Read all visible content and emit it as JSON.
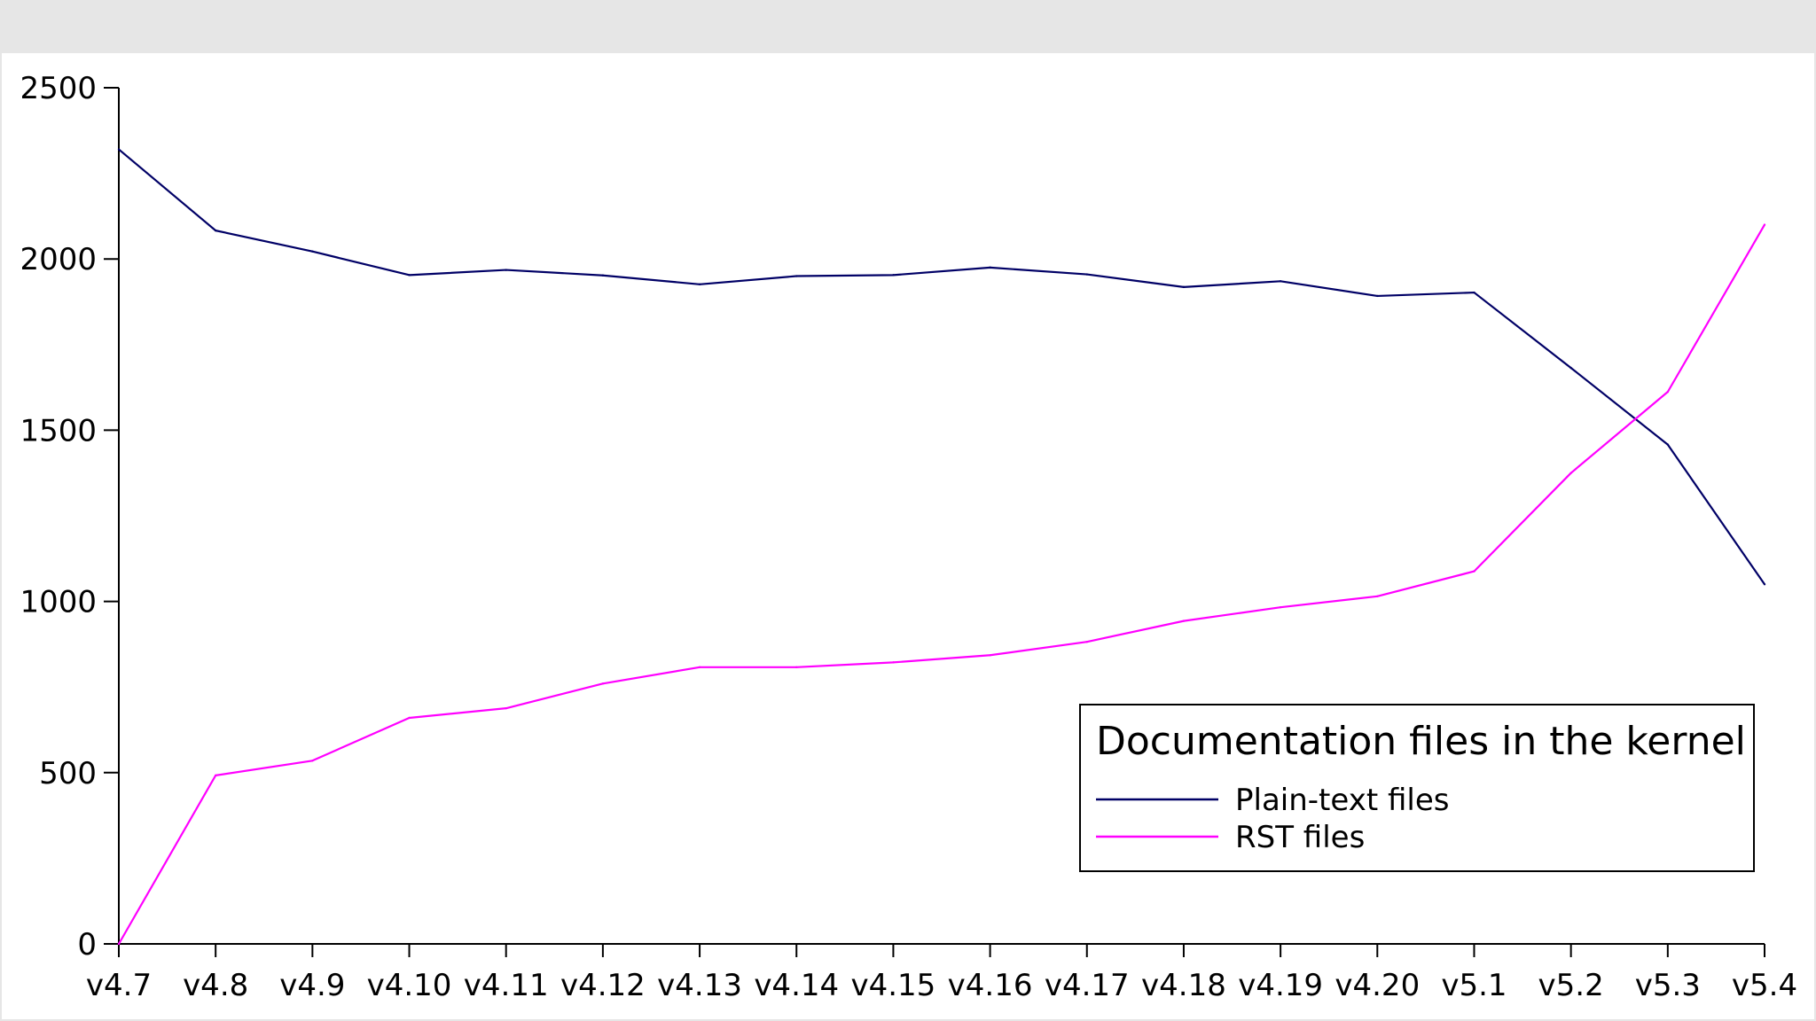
{
  "colors": {
    "background": "#ffffff",
    "frame": "#e6e6e6",
    "axis": "#000000"
  },
  "chart_data": {
    "type": "line",
    "title": "",
    "xlabel": "",
    "ylabel": "",
    "categories": [
      "v4.7",
      "v4.8",
      "v4.9",
      "v4.10",
      "v4.11",
      "v4.12",
      "v4.13",
      "v4.14",
      "v4.15",
      "v4.16",
      "v4.17",
      "v4.18",
      "v4.19",
      "v4.20",
      "v5.1",
      "v5.2",
      "v5.3",
      "v5.4"
    ],
    "ylim": [
      0,
      2500
    ],
    "yticks": [
      0,
      500,
      1000,
      1500,
      2000,
      2500
    ],
    "grid": false,
    "legend": {
      "title": "Documentation files in the kernel",
      "placement": "bottom-right"
    },
    "series": [
      {
        "name": "Plain-text files",
        "color": "#000066",
        "values": [
          2320,
          2083,
          2022,
          1953,
          1968,
          1952,
          1926,
          1950,
          1953,
          1975,
          1955,
          1918,
          1935,
          1892,
          1902,
          1682,
          1458,
          1050
        ]
      },
      {
        "name": "RST files",
        "color": "#ff00ff",
        "values": [
          0,
          492,
          535,
          660,
          688,
          760,
          808,
          808,
          822,
          843,
          882,
          943,
          983,
          1015,
          1088,
          1375,
          1612,
          2100
        ]
      }
    ]
  }
}
